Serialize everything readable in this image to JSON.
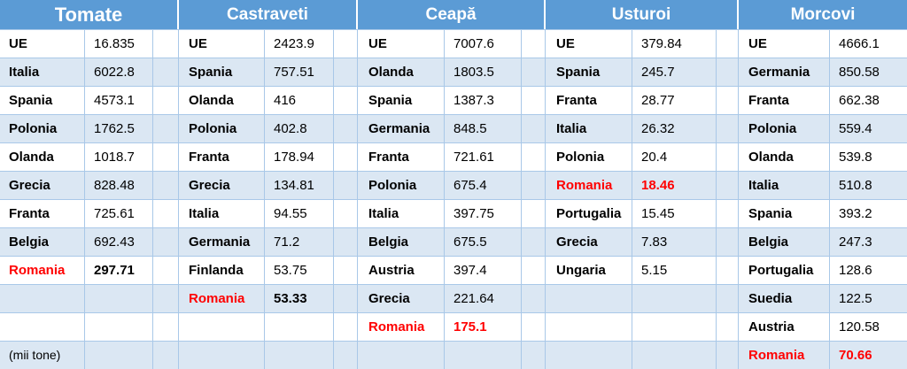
{
  "table": {
    "groups": [
      {
        "header": "Tomate",
        "big": true,
        "rows": [
          {
            "name": "UE",
            "value": "16.835"
          },
          {
            "name": "Italia",
            "value": "6022.8"
          },
          {
            "name": "Spania",
            "value": "4573.1"
          },
          {
            "name": "Polonia",
            "value": "1762.5"
          },
          {
            "name": "Olanda",
            "value": "1018.7"
          },
          {
            "name": "Grecia",
            "value": "828.48"
          },
          {
            "name": "Franta",
            "value": "725.61"
          },
          {
            "name": "Belgia",
            "value": "692.43"
          },
          {
            "name": "Romania",
            "value": "297.71",
            "highlight": true
          }
        ]
      },
      {
        "header": "Castraveti",
        "big": false,
        "rows": [
          {
            "name": "UE",
            "value": "2423.9"
          },
          {
            "name": "Spania",
            "value": "757.51"
          },
          {
            "name": "Olanda",
            "value": "416"
          },
          {
            "name": "Polonia",
            "value": "402.8"
          },
          {
            "name": "Franta",
            "value": "178.94"
          },
          {
            "name": "Grecia",
            "value": "134.81"
          },
          {
            "name": "Italia",
            "value": "94.55"
          },
          {
            "name": "Germania",
            "value": "71.2"
          },
          {
            "name": "Finlanda",
            "value": "53.75"
          },
          {
            "name": "Romania",
            "value": "53.33",
            "highlight": true
          }
        ]
      },
      {
        "header": "Ceapă",
        "big": false,
        "rows": [
          {
            "name": "UE",
            "value": "7007.6"
          },
          {
            "name": "Olanda",
            "value": "1803.5"
          },
          {
            "name": "Spania",
            "value": "1387.3"
          },
          {
            "name": "Germania",
            "value": "848.5"
          },
          {
            "name": "Franta",
            "value": "721.61"
          },
          {
            "name": "Polonia",
            "value": "675.4"
          },
          {
            "name": "Italia",
            "value": "397.75"
          },
          {
            "name": "Belgia",
            "value": "675.5"
          },
          {
            "name": "Austria",
            "value": "397.4"
          },
          {
            "name": "Grecia",
            "value": "221.64"
          },
          {
            "name": "Romania",
            "value": "175.1",
            "highlight": true
          }
        ]
      },
      {
        "header": "Usturoi",
        "big": false,
        "rows": [
          {
            "name": "UE",
            "value": "379.84"
          },
          {
            "name": "Spania",
            "value": "245.7"
          },
          {
            "name": "Franta",
            "value": "28.77"
          },
          {
            "name": "Italia",
            "value": "26.32"
          },
          {
            "name": "Polonia",
            "value": "20.4"
          },
          {
            "name": "Romania",
            "value": "18.46",
            "highlight": true
          },
          {
            "name": "Portugalia",
            "value": "15.45"
          },
          {
            "name": "Grecia",
            "value": "7.83"
          },
          {
            "name": "Ungaria",
            "value": "5.15"
          }
        ]
      },
      {
        "header": "Morcovi",
        "big": false,
        "rows": [
          {
            "name": "UE",
            "value": "4666.1"
          },
          {
            "name": "Germania",
            "value": "850.58"
          },
          {
            "name": "Franta",
            "value": "662.38"
          },
          {
            "name": "Polonia",
            "value": "559.4"
          },
          {
            "name": "Olanda",
            "value": "539.8"
          },
          {
            "name": "Italia",
            "value": "510.8"
          },
          {
            "name": "Spania",
            "value": "393.2"
          },
          {
            "name": "Belgia",
            "value": "247.3"
          },
          {
            "name": "Portugalia",
            "value": "128.6"
          },
          {
            "name": "Suedia",
            "value": "122.5"
          },
          {
            "name": "Austria",
            "value": "120.58"
          },
          {
            "name": "Romania",
            "value": "70.66",
            "highlight": true
          }
        ]
      }
    ],
    "note": "(mii tone)"
  },
  "colors": {
    "header_bg": "#5b9bd5",
    "row_alt": "#dbe7f3",
    "highlight": "#ff0000"
  }
}
